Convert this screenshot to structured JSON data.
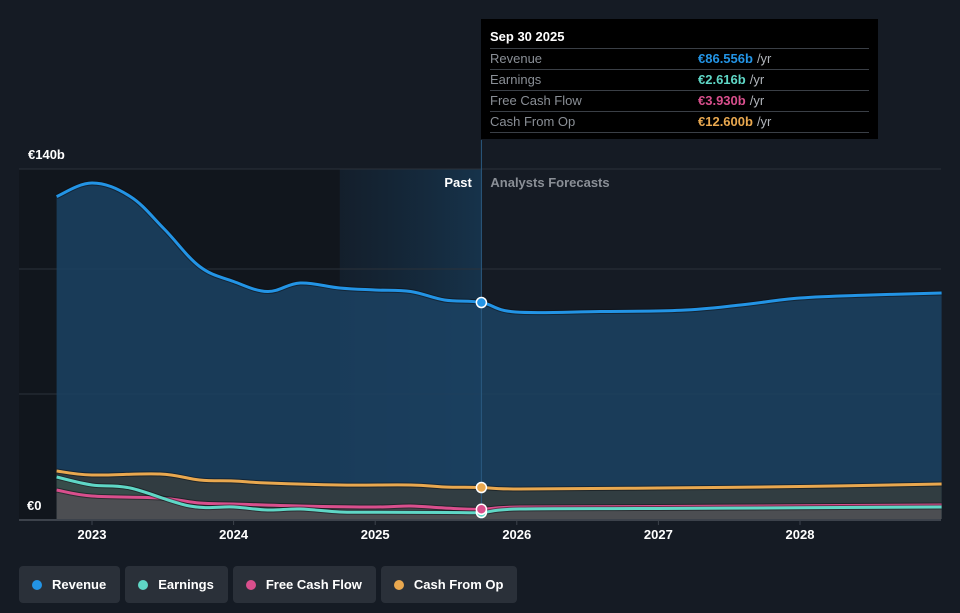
{
  "chart_data": {
    "type": "area",
    "currency": "€",
    "y_unit": "b",
    "ylim": [
      0,
      140
    ],
    "y_ticks": [
      {
        "value": 0,
        "label": "€0"
      },
      {
        "value": 50,
        "label": ""
      },
      {
        "value": 100,
        "label": ""
      },
      {
        "value": 140,
        "label": "€140b"
      }
    ],
    "x_range": [
      2022.5,
      2029.15
    ],
    "x_ticks": [
      {
        "value": 2023,
        "label": "2023"
      },
      {
        "value": 2024,
        "label": "2024"
      },
      {
        "value": 2025,
        "label": "2025"
      },
      {
        "value": 2026,
        "label": "2026"
      },
      {
        "value": 2027,
        "label": "2027"
      },
      {
        "value": 2028,
        "label": "2028"
      }
    ],
    "past_highlight_start": 2024.75,
    "split_date": 2025.75,
    "region_labels": {
      "past": "Past",
      "forecast": "Analysts Forecasts"
    },
    "series": [
      {
        "name": "Revenue",
        "color": "#2394e5",
        "x": [
          2022.75,
          2023.0,
          2023.27,
          2023.51,
          2023.76,
          2024.0,
          2024.24,
          2024.47,
          2024.75,
          2025.0,
          2025.25,
          2025.49,
          2025.75,
          2025.99,
          2026.59,
          2027.16,
          2027.58,
          2028.0,
          2028.5,
          2029.0
        ],
        "values": [
          129,
          134.4,
          129,
          116,
          101,
          95,
          91,
          94.4,
          92.4,
          91.6,
          91,
          87.6,
          86.6,
          82.8,
          83,
          83.5,
          85.6,
          88.4,
          89.6,
          90.4
        ]
      },
      {
        "name": "Earnings",
        "color": "#5fd7c6",
        "x": [
          2022.75,
          2023.0,
          2023.27,
          2023.69,
          2024.0,
          2024.24,
          2024.47,
          2024.75,
          2025.0,
          2025.5,
          2025.75,
          2026.02,
          2027.0,
          2028.0,
          2029.0
        ],
        "values": [
          16.8,
          13.6,
          12.4,
          5.2,
          4.8,
          3.6,
          4.0,
          2.8,
          2.7,
          2.6,
          2.6,
          4.0,
          4.2,
          4.5,
          4.8
        ]
      },
      {
        "name": "Free Cash Flow",
        "color": "#d94f8d",
        "x": [
          2022.75,
          2023.0,
          2023.48,
          2023.76,
          2024.0,
          2024.47,
          2025.0,
          2025.25,
          2025.49,
          2025.75,
          2026.02,
          2027.0,
          2028.0,
          2029.0
        ],
        "values": [
          11.6,
          9.2,
          8.4,
          6.4,
          6.0,
          5.2,
          4.8,
          5.2,
          4.4,
          3.9,
          4.8,
          5.0,
          5.3,
          5.6
        ]
      },
      {
        "name": "Cash From Op",
        "color": "#e9a84f",
        "x": [
          2022.75,
          2023.0,
          2023.48,
          2023.76,
          2024.0,
          2024.24,
          2024.75,
          2025.25,
          2025.49,
          2025.75,
          2026.02,
          2027.0,
          2028.0,
          2029.0
        ],
        "values": [
          19.2,
          17.6,
          18.0,
          15.6,
          15.2,
          14.4,
          13.6,
          13.6,
          12.8,
          12.6,
          12.0,
          12.4,
          13.0,
          14.0
        ]
      }
    ]
  },
  "tooltip": {
    "date": "Sep 30 2025",
    "rows": [
      {
        "label": "Revenue",
        "value": "€86.556b",
        "unit": "/yr",
        "color": "#2394e5"
      },
      {
        "label": "Earnings",
        "value": "€2.616b",
        "unit": "/yr",
        "color": "#5fd7c6"
      },
      {
        "label": "Free Cash Flow",
        "value": "€3.930b",
        "unit": "/yr",
        "color": "#d94f8d"
      },
      {
        "label": "Cash From Op",
        "value": "€12.600b",
        "unit": "/yr",
        "color": "#e9a84f"
      }
    ]
  },
  "legend": [
    {
      "label": "Revenue",
      "color": "#2394e5"
    },
    {
      "label": "Earnings",
      "color": "#5fd7c6"
    },
    {
      "label": "Free Cash Flow",
      "color": "#d94f8d"
    },
    {
      "label": "Cash From Op",
      "color": "#e9a84f"
    }
  ]
}
